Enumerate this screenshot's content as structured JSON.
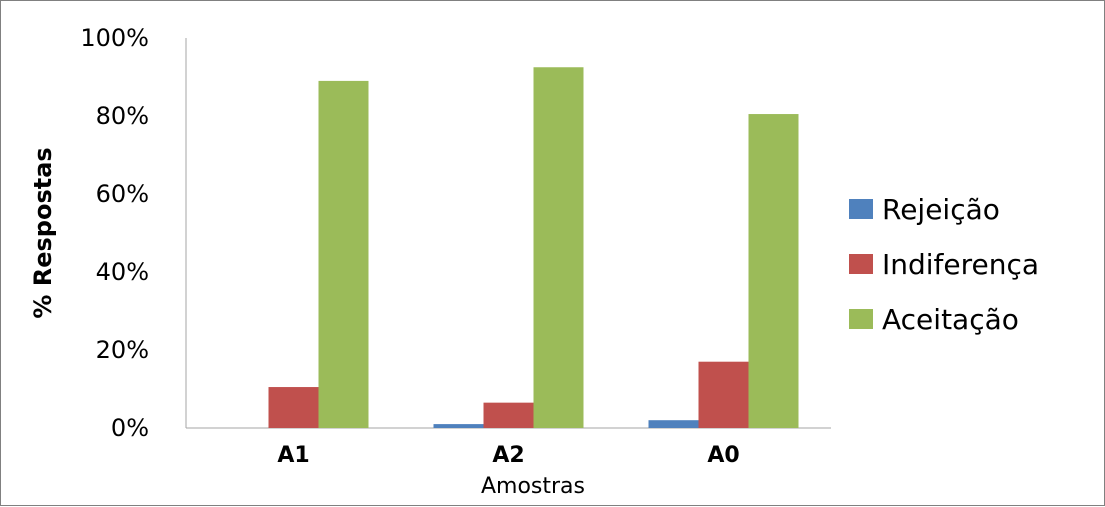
{
  "chart_data": {
    "type": "bar",
    "categories": [
      "A1",
      "A2",
      "A0"
    ],
    "series": [
      {
        "name": "Rejeição",
        "color": "#4F81BD",
        "values": [
          0,
          1,
          2
        ]
      },
      {
        "name": "Indiferença",
        "color": "#C0504D",
        "values": [
          10.5,
          6.5,
          17
        ]
      },
      {
        "name": "Aceitação",
        "color": "#9BBB59",
        "values": [
          89,
          92.5,
          80.5
        ]
      }
    ],
    "y_ticks": [
      "0%",
      "20%",
      "40%",
      "60%",
      "80%",
      "100%"
    ],
    "ylim": [
      0,
      100
    ],
    "xlabel": "Amostras",
    "ylabel": "% Respostas",
    "legend_position": "right",
    "grid": false
  }
}
